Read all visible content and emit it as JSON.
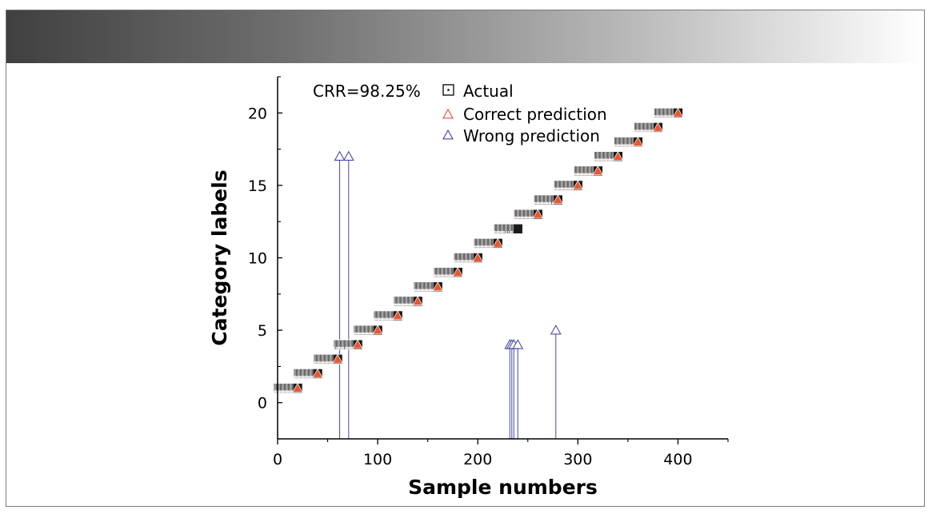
{
  "chart_data": {
    "type": "scatter",
    "title": "",
    "annotation": "CRR=98.25%",
    "xlabel": "Sample numbers",
    "ylabel": "Category labels",
    "xlim": [
      0,
      450
    ],
    "ylim": [
      -2.5,
      22.5
    ],
    "xticks": [
      0,
      100,
      200,
      300,
      400
    ],
    "yticks": [
      0,
      5,
      10,
      15,
      20
    ],
    "grid": false,
    "legend_position": "top-center",
    "series": [
      {
        "name": "Actual",
        "marker": "square-dot",
        "color": "#000000"
      },
      {
        "name": "Correct prediction",
        "marker": "triangle",
        "color": "#e8562f"
      },
      {
        "name": "Wrong prediction",
        "marker": "triangle",
        "color": "#4a4aa8"
      }
    ],
    "samples_per_class": 20,
    "classes": [
      1,
      2,
      3,
      4,
      5,
      6,
      7,
      8,
      9,
      10,
      11,
      12,
      13,
      14,
      15,
      16,
      17,
      18,
      19,
      20
    ],
    "wrong_predictions": [
      {
        "sample": 62,
        "actual": 4,
        "predicted": 17
      },
      {
        "sample": 71,
        "actual": 4,
        "predicted": 17
      },
      {
        "sample": 232,
        "actual": 12,
        "predicted": 4
      },
      {
        "sample": 234,
        "actual": 12,
        "predicted": 4
      },
      {
        "sample": 236,
        "actual": 12,
        "predicted": 4
      },
      {
        "sample": 240,
        "actual": 12,
        "predicted": 4
      },
      {
        "sample": 278,
        "actual": 14,
        "predicted": 5
      }
    ]
  },
  "colors": {
    "actual_fill": "#1a1a1a",
    "correct_fill": "#e8562f",
    "wrong_stroke": "#4a4aa8"
  }
}
